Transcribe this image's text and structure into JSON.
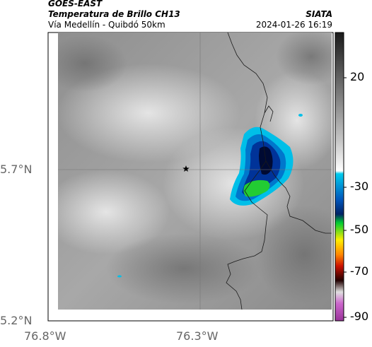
{
  "header": {
    "satellite": "GOES-EAST",
    "product": "Temperatura de Brillo CH13",
    "region": "Vía Medellín - Quibdó 50km",
    "org": "SIATA",
    "datetime": "2024-01-26 16:19"
  },
  "axes": {
    "lat_ticks": [
      {
        "label": "5.7°N",
        "value": 5.7
      },
      {
        "label": "5.2°N",
        "value": 5.2
      }
    ],
    "lon_ticks": [
      {
        "label": "76.8°W",
        "value": -76.8
      },
      {
        "label": "76.3°W",
        "value": -76.3
      }
    ]
  },
  "colorbar": {
    "ticks": [
      {
        "label": "20",
        "value": 20
      },
      {
        "label": "-30",
        "value": -30
      },
      {
        "label": "-50",
        "value": -50
      },
      {
        "label": "-70",
        "value": -70
      },
      {
        "label": "-90",
        "value": -90
      }
    ],
    "colors": [
      "#1a1a1a",
      "#ffffff",
      "#00ccee",
      "#0055bb",
      "#00cc33",
      "#ffee00",
      "#ee3300",
      "#220000",
      "#d0d0d0",
      "#cc33cc"
    ]
  },
  "map": {
    "marker": "star-icon",
    "background_shade": "#9a9a9a",
    "storm_colors": [
      "#00bfe8",
      "#0077cc",
      "#003399",
      "#000a33",
      "#22cc33"
    ]
  }
}
